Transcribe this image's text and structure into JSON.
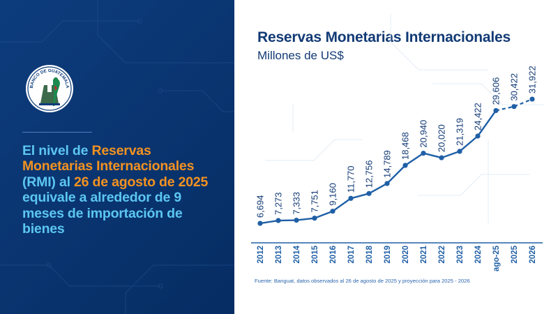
{
  "headline": {
    "p1": "El nivel de ",
    "p2": "Reservas Monetarias Internacionales",
    "p3": " (RMI) al ",
    "p4": "26 de agosto de 2025",
    "p5": " equivale a alrededor de ",
    "p6": "9 meses",
    "p7": " de importación de bienes"
  },
  "seal": {
    "text": "BANCO DE GUATEMALA",
    "icon": "quetzal-bird-seal-icon"
  },
  "colors": {
    "panel": "#0b3b7a",
    "accent_orange": "#f39221",
    "accent_cyan": "#5cc6f2",
    "line": "#1f5fa6",
    "title": "#123a75"
  },
  "chart_data": {
    "type": "line",
    "title": "Reservas Monetarias Internacionales",
    "subtitle": "Millones de US$",
    "categories": [
      "2012",
      "2013",
      "2014",
      "2015",
      "2016",
      "2017",
      "2018",
      "2019",
      "2020",
      "2021",
      "2022",
      "2023",
      "2024",
      "ago-25",
      "2025",
      "2026"
    ],
    "values": [
      6694,
      7273,
      7333,
      7751,
      9160,
      11770,
      12756,
      14789,
      18468,
      20940,
      20020,
      21319,
      24422,
      29606,
      30422,
      31922
    ],
    "value_labels": [
      "6,694",
      "7,273",
      "7,333",
      "7,751",
      "9,160",
      "11,770",
      "12,756",
      "14,789",
      "18,468",
      "20,940",
      "20,020",
      "21,319",
      "24,422",
      "29,606",
      "30,422",
      "31,922"
    ],
    "observed_through": "ago-25",
    "projected": [
      "2025",
      "2026"
    ],
    "ylim": [
      6000,
      32500
    ],
    "grid": false,
    "source": "Fuente: Banguat, datos observados al 26 de agosto de 2025 y proyección para 2025 - 2026"
  }
}
